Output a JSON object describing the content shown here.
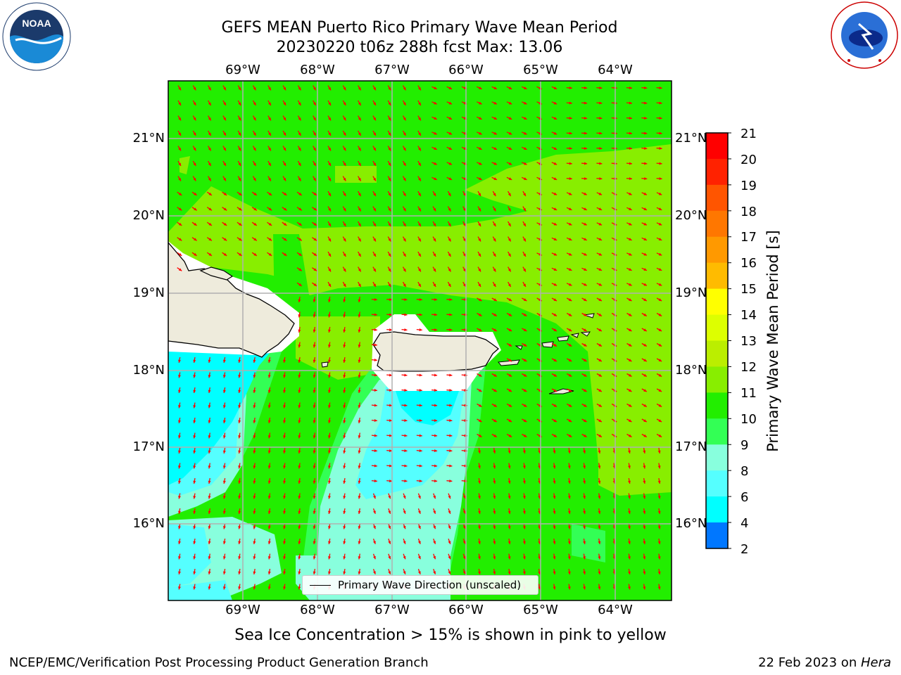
{
  "title": {
    "line1": "GEFS MEAN Puerto Rico Primary Wave Mean Period",
    "line2": "20230220 t06z 288h fcst   Max: 13.06"
  },
  "logos": {
    "noaa_text": "NOAA",
    "noaa_ring_text": "NATIONAL OCEANIC AND ATMOSPHERIC ADMINISTRATION · U.S. DEPARTMENT OF COMMERCE",
    "nws_ring_text": "NATIONAL WEATHER SERVICE"
  },
  "map": {
    "lon_labels": [
      "69°W",
      "68°W",
      "67°W",
      "66°W",
      "65°W",
      "64°W"
    ],
    "lat_labels": [
      "21°N",
      "20°N",
      "19°N",
      "18°N",
      "17°N",
      "16°N"
    ],
    "legend_label": "Primary Wave Direction (unscaled)",
    "colors": {
      "green_11_12": "#22ee00",
      "lime_12_13": "#88ee00",
      "light_green_10_11": "#33ff55",
      "aquamarine_9_10": "#88ffdd",
      "light_cyan_8_9": "#55ffff",
      "cyan_6_8": "#00ffff",
      "land": "#eeebdc",
      "arrow": "#ff0000"
    }
  },
  "colorbar": {
    "label": "Primary Wave Mean Period [s]",
    "ticks": [
      "21",
      "20",
      "19",
      "18",
      "17",
      "16",
      "15",
      "14",
      "13",
      "12",
      "11",
      "10",
      "9",
      "8",
      "6",
      "4",
      "2"
    ],
    "colors": [
      "#ff0000",
      "#ff2200",
      "#ff5500",
      "#ff7700",
      "#ff9900",
      "#ffbb00",
      "#ffff00",
      "#ddff00",
      "#bbee00",
      "#88ee00",
      "#22ee00",
      "#33ff55",
      "#88ffdd",
      "#55ffff",
      "#00ffff",
      "#0077ff",
      "#0000ff"
    ]
  },
  "caption": "Sea Ice Concentration > 15% is shown in pink to yellow",
  "footer": {
    "left": "NCEP/EMC/Verification Post Processing Product Generation Branch",
    "right_prefix": "22 Feb 2023 on ",
    "right_host": "Hera"
  }
}
